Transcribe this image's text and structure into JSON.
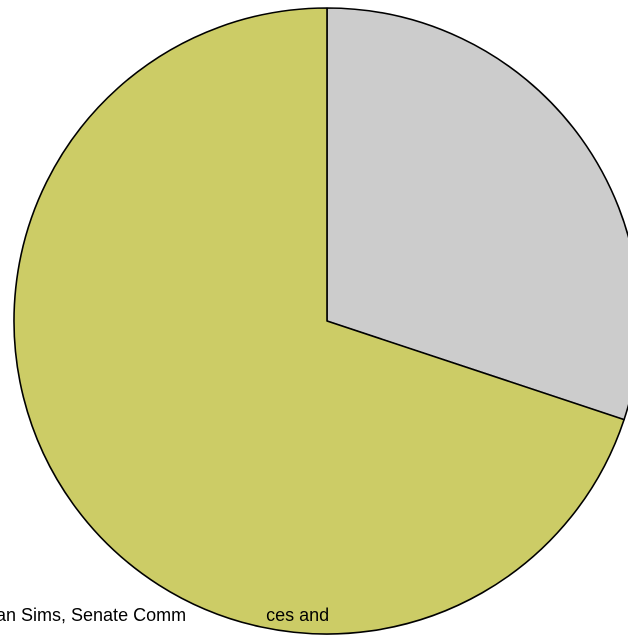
{
  "chart_data": {
    "type": "pie",
    "start_angle_deg": 0,
    "direction": "clockwise",
    "slices": [
      {
        "value": 30.1,
        "color": "#cccccc"
      },
      {
        "value": 69.9,
        "color": "#cccc66"
      }
    ],
    "edge_color": "#000000"
  },
  "caption": {
    "left_text": "an Sims, Senate Comm",
    "right_text": "ces and"
  }
}
